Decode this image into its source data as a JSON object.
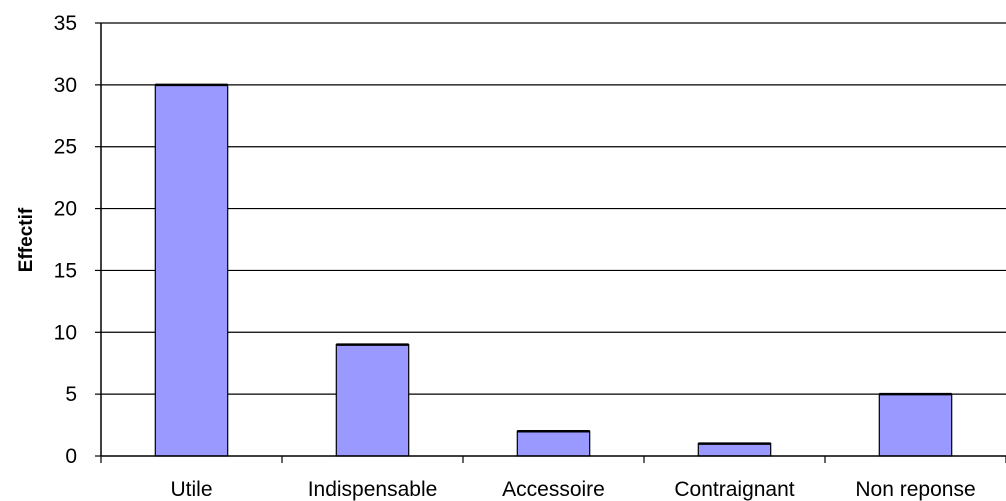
{
  "chart_data": {
    "type": "bar",
    "title": "",
    "xlabel": "",
    "ylabel": "Effectif",
    "categories": [
      "Utile",
      "Indispensable",
      "Accessoire",
      "Contraignant",
      "Non reponse"
    ],
    "values": [
      30,
      9,
      2,
      1,
      5
    ],
    "ylim": [
      0,
      35
    ],
    "yticks": [
      "0",
      "5",
      "10",
      "15",
      "20",
      "25",
      "30",
      "35"
    ],
    "grid": true,
    "legend": "none",
    "bar_color": "#9999ff"
  }
}
